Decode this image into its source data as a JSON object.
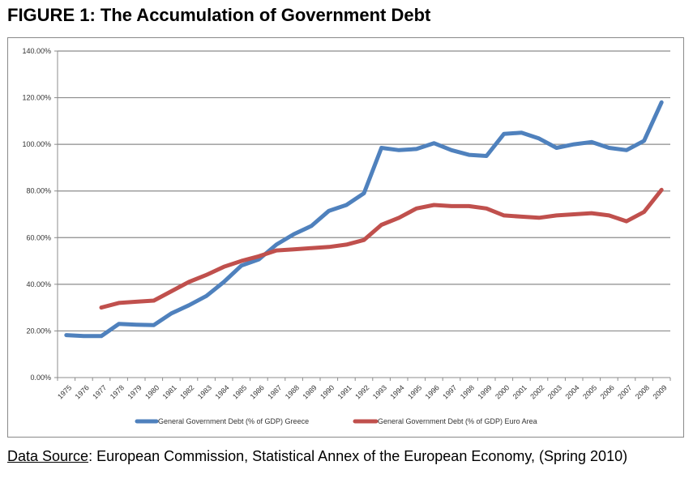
{
  "figure": {
    "title": "FIGURE 1: The Accumulation of Government Debt"
  },
  "chart_data": {
    "type": "line",
    "title": "",
    "xlabel": "",
    "ylabel": "",
    "ylim": [
      0,
      140
    ],
    "yticks": [
      0,
      20,
      40,
      60,
      80,
      100,
      120,
      140
    ],
    "ytick_labels": [
      "0.00%",
      "20.00%",
      "40.00%",
      "60.00%",
      "80.00%",
      "100.00%",
      "120.00%",
      "140.00%"
    ],
    "grid": true,
    "legend_position": "bottom",
    "categories": [
      "1975",
      "1976",
      "1977",
      "1978",
      "1979",
      "1980",
      "1981",
      "1982",
      "1983",
      "1984",
      "1985",
      "1986",
      "1987",
      "1988",
      "1989",
      "1990",
      "1991",
      "1992",
      "1993",
      "1994",
      "1995",
      "1996",
      "1997",
      "1998",
      "1999",
      "2000",
      "2001",
      "2002",
      "2003",
      "2004",
      "2005",
      "2006",
      "2007",
      "2008",
      "2009"
    ],
    "series": [
      {
        "name": "General Government Debt (% of GDP) Greece",
        "color": "#4f81bd",
        "values": [
          18.2,
          17.8,
          17.8,
          23.0,
          22.7,
          22.5,
          27.5,
          31.0,
          35.0,
          41.0,
          48.0,
          50.7,
          57.0,
          61.5,
          65.0,
          71.5,
          74.0,
          79.0,
          98.5,
          97.5,
          98.0,
          100.5,
          97.5,
          95.5,
          95.0,
          104.5,
          105.0,
          102.5,
          98.5,
          100.0,
          101.0,
          98.5,
          97.5,
          101.5,
          118.0
        ]
      },
      {
        "name": "General Government Debt (% of GDP) Euro Area",
        "color": "#c0504d",
        "values": [
          null,
          null,
          30.0,
          32.0,
          32.5,
          33.0,
          37.0,
          41.0,
          44.0,
          47.5,
          50.0,
          52.0,
          54.5,
          55.0,
          55.5,
          56.0,
          57.0,
          59.0,
          65.5,
          68.5,
          72.5,
          74.0,
          73.5,
          73.5,
          72.5,
          69.5,
          69.0,
          68.5,
          69.5,
          70.0,
          70.5,
          69.5,
          67.0,
          71.0,
          80.5
        ]
      }
    ]
  },
  "source": {
    "label": "Data Source",
    "text": ": European Commission, Statistical Annex of the European Economy, (Spring 2010)"
  }
}
